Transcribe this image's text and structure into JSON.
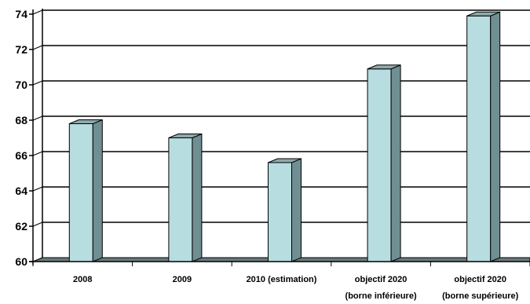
{
  "chart_data": {
    "type": "bar",
    "style": "3d",
    "categories": [
      [
        "2008"
      ],
      [
        "2009"
      ],
      [
        "2010 (estimation)"
      ],
      [
        "objectif 2020",
        "(borne inférieure)"
      ],
      [
        "objectif 2020",
        "(borne supérieure)"
      ]
    ],
    "values": [
      67.8,
      67.0,
      65.6,
      70.9,
      73.9
    ],
    "ylim": [
      60,
      74
    ],
    "yticks": [
      60,
      62,
      64,
      66,
      68,
      70,
      72,
      74
    ],
    "grid": true,
    "legend": "none",
    "title": "",
    "xlabel": "",
    "ylabel": "",
    "colors": {
      "bar_front": "#b8dde0",
      "bar_side": "#6f8f92",
      "bar_top": "#8ea9ab",
      "floor": "#6a7a7c",
      "grid": "#000000",
      "axis": "#000000"
    }
  }
}
